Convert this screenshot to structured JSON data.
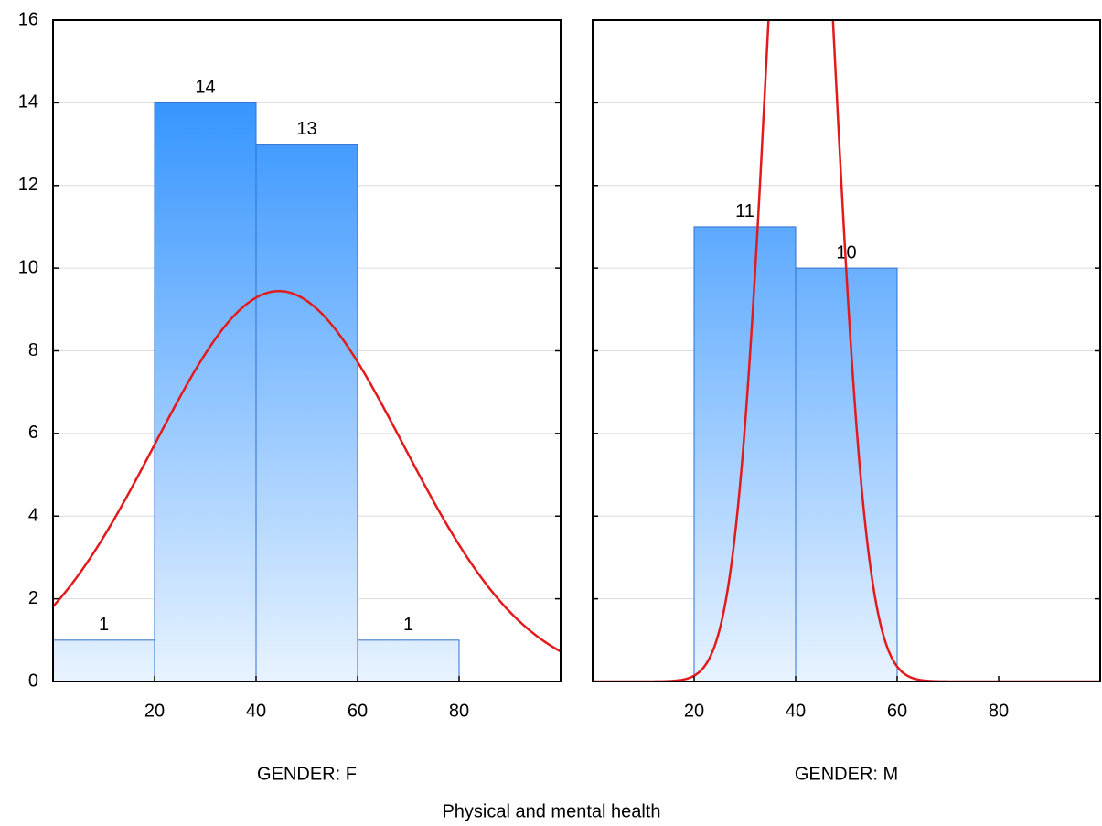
{
  "figure_xlabel": "Physical and mental health",
  "chart_data": [
    {
      "type": "histogram",
      "xlabel": "GENDER: F",
      "bins": [
        0,
        20,
        40,
        60,
        80
      ],
      "values": [
        1,
        14,
        13,
        1
      ],
      "xlim": [
        0,
        100
      ],
      "xticks": [
        20,
        40,
        60,
        80
      ],
      "ylim": [
        0,
        16
      ],
      "yticks": [
        0,
        2,
        4,
        6,
        8,
        10,
        12,
        14,
        16
      ],
      "show_ytick_labels": true,
      "grid": true,
      "fit": {
        "type": "normal",
        "mean": 44.5,
        "sd": 24.5,
        "color": "#e31a1c"
      }
    },
    {
      "type": "histogram",
      "xlabel": "GENDER: M",
      "bins": [
        20,
        40,
        60
      ],
      "values": [
        11,
        10
      ],
      "xlim": [
        0,
        100
      ],
      "xticks": [
        20,
        40,
        60,
        80
      ],
      "ylim": [
        0,
        16
      ],
      "yticks": [
        0,
        2,
        4,
        6,
        8,
        10,
        12,
        14,
        16
      ],
      "show_ytick_labels": false,
      "grid": true,
      "fit": {
        "type": "normal",
        "mean": 41,
        "sd": 6.5,
        "color": "#e31a1c"
      }
    }
  ]
}
